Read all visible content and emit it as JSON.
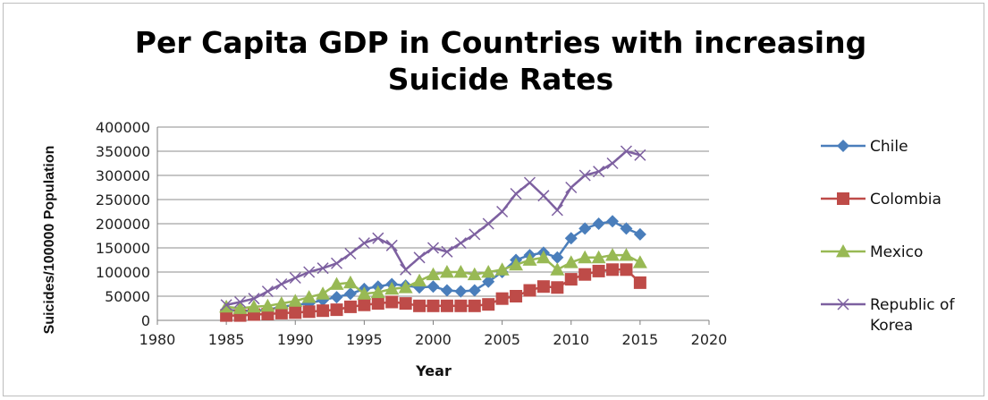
{
  "chart_data": {
    "type": "line",
    "title_lines": [
      "Per Capita GDP in Countries with increasing",
      "Suicide Rates"
    ],
    "xlabel": "Year",
    "ylabel": "Suicides/100000 Population",
    "xlim": [
      1980,
      2020
    ],
    "ylim": [
      0,
      400000
    ],
    "x_ticks": [
      1980,
      1985,
      1990,
      1995,
      2000,
      2005,
      2010,
      2015,
      2020
    ],
    "y_ticks": [
      0,
      50000,
      100000,
      150000,
      200000,
      250000,
      300000,
      350000,
      400000
    ],
    "grid": "horizontal",
    "legend_position": "right",
    "x": [
      1985,
      1986,
      1987,
      1988,
      1989,
      1990,
      1991,
      1992,
      1993,
      1994,
      1995,
      1996,
      1997,
      1998,
      1999,
      2000,
      2001,
      2002,
      2003,
      2004,
      2005,
      2006,
      2007,
      2008,
      2009,
      2010,
      2011,
      2012,
      2013,
      2014,
      2015
    ],
    "series": [
      {
        "name": "Chile",
        "color": "#4a7ebb",
        "marker": "diamond",
        "values": [
          22000,
          20000,
          20000,
          22000,
          28000,
          32000,
          35000,
          42000,
          48000,
          55000,
          65000,
          70000,
          75000,
          72000,
          68000,
          70000,
          62000,
          60000,
          62000,
          80000,
          100000,
          125000,
          135000,
          140000,
          130000,
          170000,
          190000,
          200000,
          205000,
          190000,
          178000
        ]
      },
      {
        "name": "Colombia",
        "color": "#be4b48",
        "marker": "square",
        "values": [
          10000,
          10000,
          12000,
          13000,
          15000,
          16000,
          18000,
          20000,
          22000,
          28000,
          32000,
          35000,
          38000,
          35000,
          30000,
          30000,
          30000,
          30000,
          30000,
          33000,
          45000,
          50000,
          62000,
          70000,
          68000,
          85000,
          95000,
          102000,
          105000,
          105000,
          78000
        ]
      },
      {
        "name": "Mexico",
        "color": "#98b954",
        "marker": "triangle",
        "values": [
          28000,
          25000,
          28000,
          30000,
          35000,
          40000,
          48000,
          55000,
          75000,
          78000,
          55000,
          58000,
          65000,
          68000,
          82000,
          95000,
          100000,
          100000,
          95000,
          100000,
          105000,
          115000,
          125000,
          130000,
          105000,
          120000,
          130000,
          130000,
          135000,
          135000,
          120000
        ]
      },
      {
        "name": "Republic of Korea",
        "color": "#7d60a0",
        "marker": "x",
        "values": [
          32000,
          38000,
          45000,
          60000,
          75000,
          88000,
          100000,
          108000,
          118000,
          138000,
          160000,
          170000,
          155000,
          105000,
          130000,
          150000,
          142000,
          160000,
          178000,
          200000,
          225000,
          262000,
          285000,
          258000,
          228000,
          275000,
          300000,
          308000,
          325000,
          350000,
          342000
        ]
      }
    ],
    "legend": [
      {
        "lines": [
          "Chile"
        ]
      },
      {
        "lines": [
          "Colombia"
        ]
      },
      {
        "lines": [
          "Mexico"
        ]
      },
      {
        "lines": [
          "Republic of",
          "Korea"
        ]
      }
    ]
  }
}
